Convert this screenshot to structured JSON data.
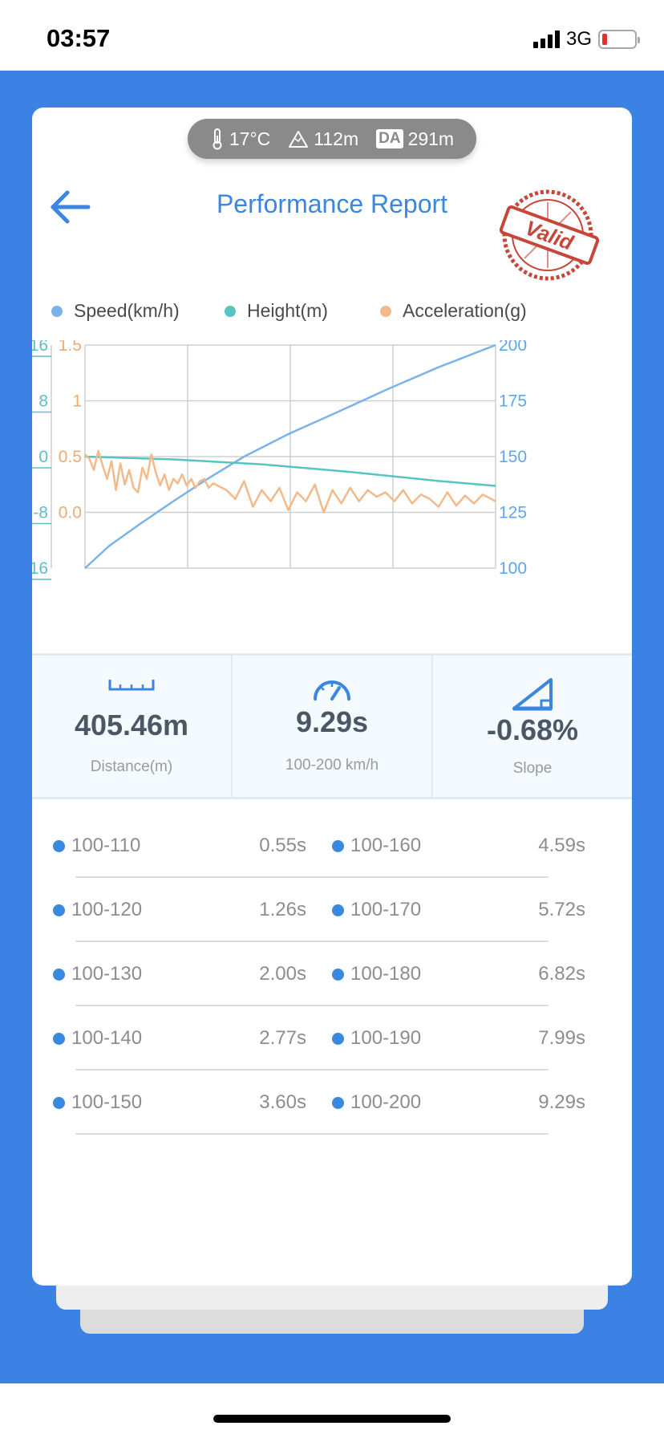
{
  "status_bar": {
    "time": "03:57",
    "network": "3G",
    "battery_level": 0.15,
    "battery_color": "#e4302b"
  },
  "environment": {
    "temperature": "17°C",
    "altitude": "112m",
    "da_label": "DA",
    "density_altitude": "291m"
  },
  "header": {
    "title": "Performance Report",
    "stamp_text": "Valid",
    "back_icon": "arrow-left-icon"
  },
  "legend": [
    {
      "label": "Speed(km/h)",
      "color": "#7ab3ea"
    },
    {
      "label": "Height(m)",
      "color": "#58c3c3"
    },
    {
      "label": "Acceleration(g)",
      "color": "#f4b98a"
    }
  ],
  "chart_data": {
    "type": "line",
    "x_range": [
      0,
      9.29
    ],
    "axes": {
      "height_ticks": [
        "16",
        "8",
        "0",
        "-8",
        "-16"
      ],
      "height_range": [
        -16,
        16
      ],
      "accel_ticks": [
        "1.5",
        "1",
        "0.5",
        "0.0"
      ],
      "accel_range": [
        -0.5,
        1.5
      ],
      "speed_ticks": [
        "200",
        "175",
        "150",
        "125",
        "100"
      ],
      "speed_range": [
        100,
        200
      ]
    },
    "grid": true,
    "series": [
      {
        "name": "Speed(km/h)",
        "axis": "speed",
        "color": "#7ab3ea",
        "x": [
          0,
          0.55,
          1.26,
          2.0,
          2.77,
          3.6,
          4.59,
          5.72,
          6.82,
          7.99,
          9.29
        ],
        "values": [
          100,
          110,
          120,
          130,
          140,
          150,
          160,
          170,
          180,
          190,
          200
        ]
      },
      {
        "name": "Height(m)",
        "axis": "height",
        "color": "#58c3c3",
        "x": [
          0,
          2,
          4,
          6,
          8,
          9.29
        ],
        "values": [
          0,
          -0.4,
          -1.1,
          -2.2,
          -3.5,
          -4.2
        ]
      },
      {
        "name": "Acceleration(g)",
        "axis": "accel",
        "color": "#f4b98a",
        "x": [
          0,
          0.1,
          0.2,
          0.3,
          0.4,
          0.5,
          0.6,
          0.7,
          0.8,
          0.9,
          1.0,
          1.1,
          1.2,
          1.3,
          1.4,
          1.5,
          1.6,
          1.7,
          1.8,
          1.9,
          2.0,
          2.1,
          2.2,
          2.3,
          2.4,
          2.5,
          2.6,
          2.7,
          2.8,
          2.9,
          3.0,
          3.2,
          3.4,
          3.6,
          3.8,
          4.0,
          4.2,
          4.4,
          4.6,
          4.8,
          5.0,
          5.2,
          5.4,
          5.6,
          5.8,
          6.0,
          6.2,
          6.4,
          6.6,
          6.8,
          7.0,
          7.2,
          7.4,
          7.6,
          7.8,
          8.0,
          8.2,
          8.4,
          8.6,
          8.8,
          9.0,
          9.29
        ],
        "values": [
          0.52,
          0.48,
          0.38,
          0.55,
          0.42,
          0.3,
          0.46,
          0.2,
          0.44,
          0.25,
          0.38,
          0.22,
          0.18,
          0.4,
          0.3,
          0.52,
          0.36,
          0.24,
          0.34,
          0.2,
          0.3,
          0.26,
          0.34,
          0.24,
          0.3,
          0.22,
          0.28,
          0.3,
          0.22,
          0.26,
          0.24,
          0.2,
          0.12,
          0.28,
          0.05,
          0.2,
          0.1,
          0.22,
          0.02,
          0.18,
          0.1,
          0.25,
          0.0,
          0.2,
          0.08,
          0.22,
          0.1,
          0.2,
          0.14,
          0.18,
          0.1,
          0.2,
          0.08,
          0.16,
          0.12,
          0.05,
          0.18,
          0.06,
          0.15,
          0.08,
          0.16,
          0.1
        ]
      }
    ]
  },
  "stats": [
    {
      "value": "405.46m",
      "label": "Distance(m)",
      "icon": "ruler-icon"
    },
    {
      "value": "9.29s",
      "label": "100-200 km/h",
      "icon": "speedometer-icon"
    },
    {
      "value": "-0.68%",
      "label": "Slope",
      "icon": "slope-icon"
    }
  ],
  "splits": [
    {
      "left_label": "100-110",
      "left_time": "0.55s",
      "right_label": "100-160",
      "right_time": "4.59s"
    },
    {
      "left_label": "100-120",
      "left_time": "1.26s",
      "right_label": "100-170",
      "right_time": "5.72s"
    },
    {
      "left_label": "100-130",
      "left_time": "2.00s",
      "right_label": "100-180",
      "right_time": "6.82s"
    },
    {
      "left_label": "100-140",
      "left_time": "2.77s",
      "right_label": "100-190",
      "right_time": "7.99s"
    },
    {
      "left_label": "100-150",
      "left_time": "3.60s",
      "right_label": "100-200",
      "right_time": "9.29s"
    }
  ],
  "colors": {
    "background": "#3b82e4",
    "accent": "#3a86e0",
    "stamp": "#c8453a"
  }
}
